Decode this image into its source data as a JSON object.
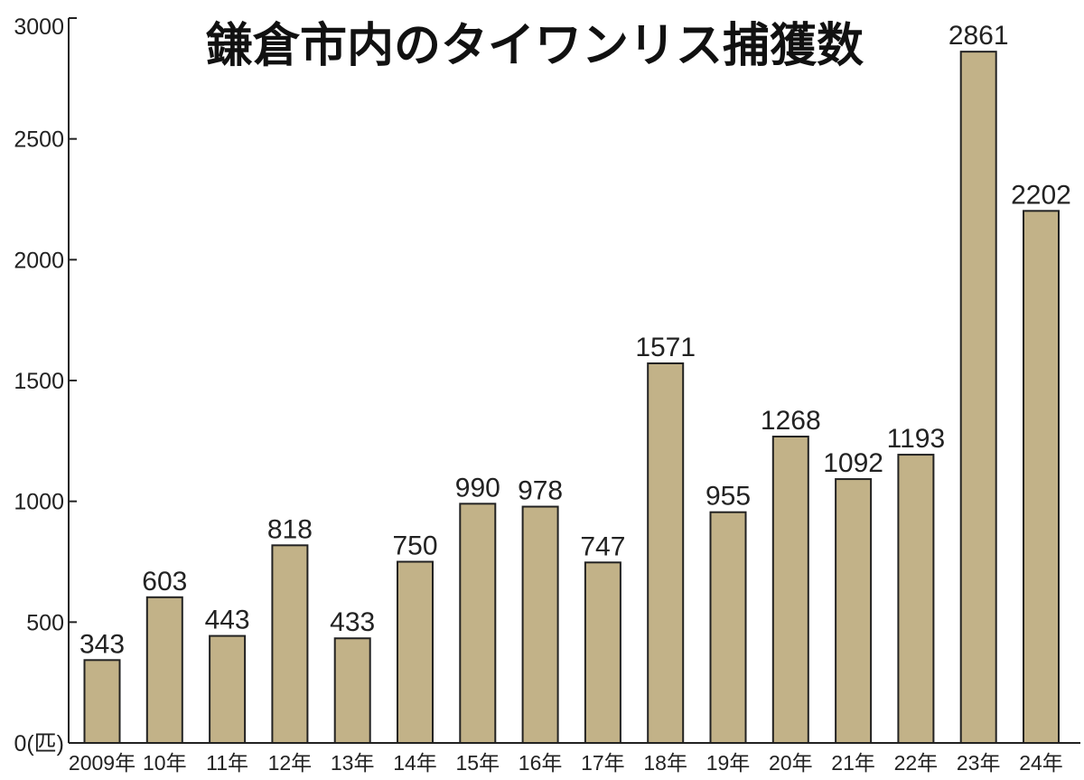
{
  "chart_data": {
    "type": "bar",
    "title": "鎌倉市内のタイワンリス捕獲数",
    "categories": [
      "2009年",
      "10年",
      "11年",
      "12年",
      "13年",
      "14年",
      "15年",
      "16年",
      "17年",
      "18年",
      "19年",
      "20年",
      "21年",
      "22年",
      "23年",
      "24年"
    ],
    "values": [
      343,
      603,
      443,
      818,
      433,
      750,
      990,
      978,
      747,
      1571,
      955,
      1268,
      1092,
      1193,
      2861,
      2202
    ],
    "y_ticks": [
      "0(匹)",
      "500",
      "1000",
      "1500",
      "2000",
      "2500",
      "3000"
    ],
    "ylim": [
      0,
      3000
    ],
    "bar_color": "#c2b288",
    "bar_edge_color": "#222222",
    "grid": false
  }
}
